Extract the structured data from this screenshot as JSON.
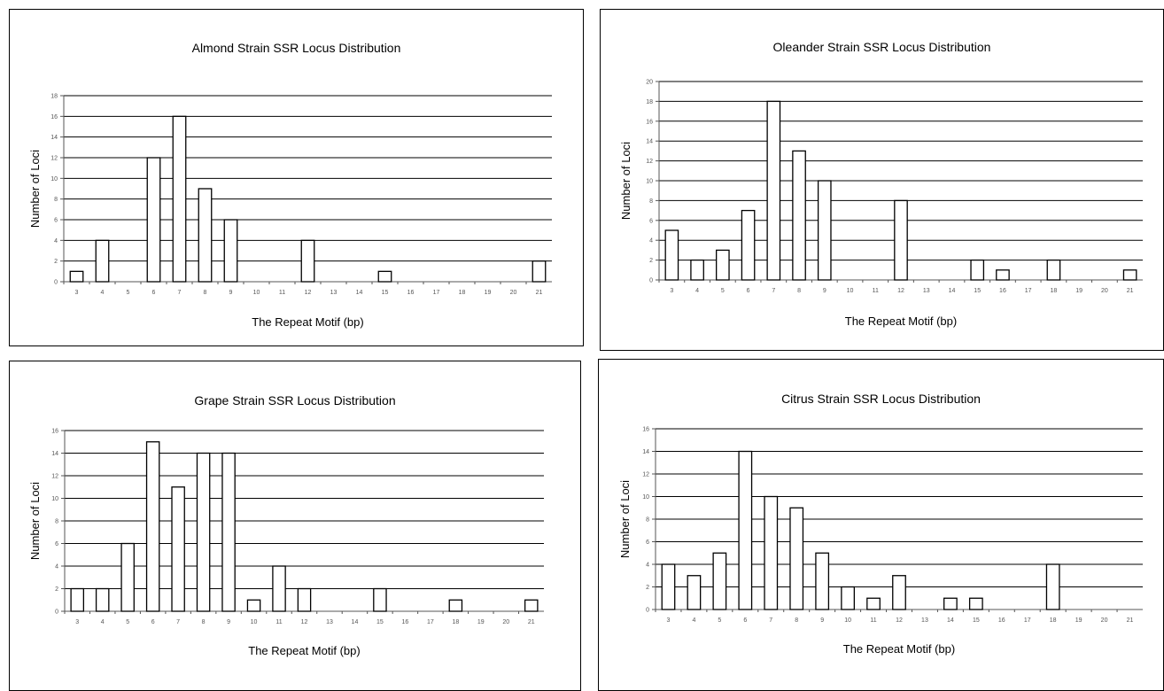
{
  "chart_data": [
    {
      "type": "bar",
      "title": "Almond Strain SSR Locus Distribution",
      "xlabel": "The Repeat Motif (bp)",
      "ylabel": "Number of Loci",
      "ylim": [
        0,
        18
      ],
      "ytick_step": 2,
      "grid": true,
      "categories": [
        "3",
        "4",
        "5",
        "6",
        "7",
        "8",
        "9",
        "10",
        "11",
        "12",
        "13",
        "14",
        "15",
        "16",
        "17",
        "18",
        "19",
        "20",
        "21"
      ],
      "values": [
        1,
        4,
        0,
        12,
        16,
        9,
        6,
        0,
        0,
        4,
        0,
        0,
        1,
        0,
        0,
        0,
        0,
        0,
        2
      ]
    },
    {
      "type": "bar",
      "title": "Oleander Strain SSR Locus Distribution",
      "xlabel": "The Repeat Motif (bp)",
      "ylabel": "Number of Loci",
      "ylim": [
        0,
        20
      ],
      "ytick_step": 2,
      "grid": true,
      "categories": [
        "3",
        "4",
        "5",
        "6",
        "7",
        "8",
        "9",
        "10",
        "11",
        "12",
        "13",
        "14",
        "15",
        "16",
        "17",
        "18",
        "19",
        "20",
        "21"
      ],
      "values": [
        5,
        2,
        3,
        7,
        18,
        13,
        10,
        0,
        0,
        8,
        0,
        0,
        2,
        1,
        0,
        2,
        0,
        0,
        1
      ]
    },
    {
      "type": "bar",
      "title": "Grape Strain SSR Locus Distribution",
      "xlabel": "The Repeat Motif (bp)",
      "ylabel": "Number of Loci",
      "ylim": [
        0,
        16
      ],
      "ytick_step": 2,
      "grid": true,
      "categories": [
        "3",
        "4",
        "5",
        "6",
        "7",
        "8",
        "9",
        "10",
        "11",
        "12",
        "13",
        "14",
        "15",
        "16",
        "17",
        "18",
        "19",
        "20",
        "21"
      ],
      "values": [
        2,
        2,
        6,
        15,
        11,
        14,
        14,
        1,
        4,
        2,
        0,
        0,
        2,
        0,
        0,
        1,
        0,
        0,
        1
      ]
    },
    {
      "type": "bar",
      "title": "Citrus Strain SSR Locus Distribution",
      "xlabel": "The Repeat Motif (bp)",
      "ylabel": "Number of Loci",
      "ylim": [
        0,
        16
      ],
      "ytick_step": 2,
      "grid": true,
      "categories": [
        "3",
        "4",
        "5",
        "6",
        "7",
        "8",
        "9",
        "10",
        "11",
        "12",
        "13",
        "14",
        "15",
        "16",
        "17",
        "18",
        "19",
        "20",
        "21"
      ],
      "values": [
        4,
        3,
        5,
        14,
        10,
        9,
        5,
        2,
        1,
        3,
        0,
        1,
        1,
        0,
        0,
        4,
        0,
        0,
        0
      ]
    }
  ]
}
